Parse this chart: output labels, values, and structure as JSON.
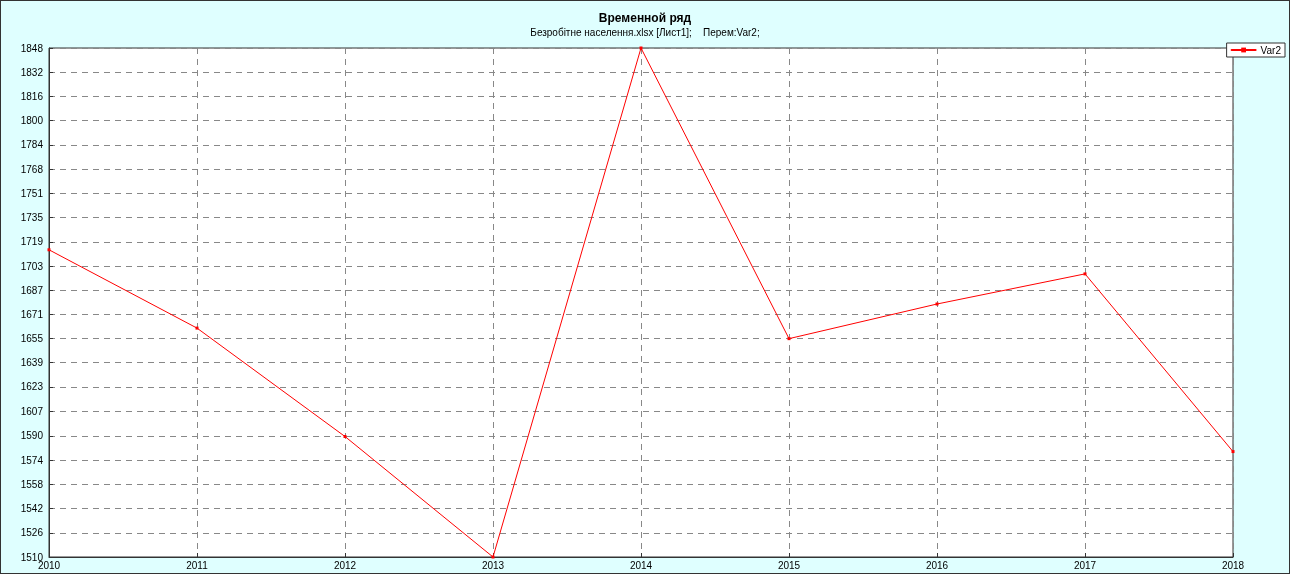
{
  "chart_data": {
    "type": "line",
    "title": "Временной ряд",
    "subtitle": "Безробітне населення.xlsx [Лист1];    Перем:Var2;",
    "x": [
      2010,
      2011,
      2012,
      2013,
      2014,
      2015,
      2016,
      2017,
      2018
    ],
    "series": [
      {
        "name": "Var2",
        "color": "#ff0000",
        "values": [
          1714,
          1662,
          1590,
          1510,
          1848,
          1655,
          1678,
          1698,
          1580
        ]
      }
    ],
    "xlim": [
      2010,
      2018
    ],
    "xticks": [
      2010,
      2011,
      2012,
      2013,
      2014,
      2015,
      2016,
      2017,
      2018
    ],
    "ylim": [
      1510,
      1848
    ],
    "yticks": [
      1510,
      {
        "value": 1526.1,
        "label": "1526"
      },
      {
        "value": 1542.3,
        "label": "1542"
      },
      {
        "value": 1558.4,
        "label": "1558"
      },
      {
        "value": 1574.4,
        "label": "1574"
      },
      {
        "value": 1590.4,
        "label": "1590"
      },
      {
        "value": 1606.8,
        "label": "1607"
      },
      {
        "value": 1622.9,
        "label": "1623"
      },
      1639,
      {
        "value": 1655.1,
        "label": "1655"
      },
      1671,
      1687,
      {
        "value": 1703.1,
        "label": "1703"
      },
      {
        "value": 1719.3,
        "label": "1719"
      },
      {
        "value": 1735.3,
        "label": "1735"
      },
      {
        "value": 1751.4,
        "label": "1751"
      },
      {
        "value": 1767.6,
        "label": "1768"
      },
      {
        "value": 1783.6,
        "label": "1784"
      },
      {
        "value": 1799.8,
        "label": "1800"
      },
      {
        "value": 1815.9,
        "label": "1816"
      },
      1832,
      1848
    ],
    "grid": true,
    "legend": "top right",
    "marker": "square",
    "line_style": "solid"
  }
}
